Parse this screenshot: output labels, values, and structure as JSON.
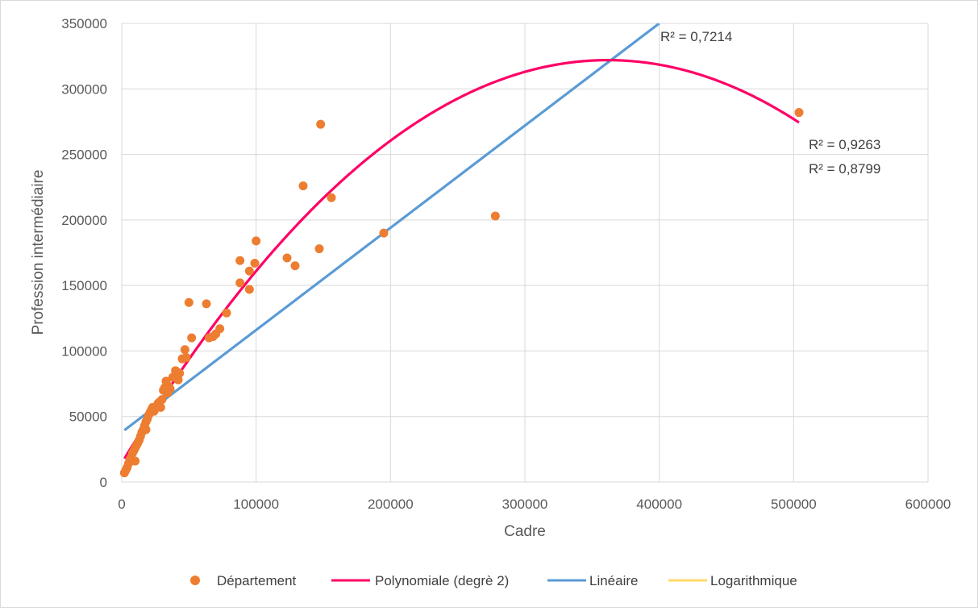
{
  "chart_data": {
    "type": "scatter",
    "xlabel": "Cadre",
    "ylabel": "Profession intermédiaire",
    "xlim": [
      0,
      600000
    ],
    "ylim": [
      0,
      350000
    ],
    "x_ticks": [
      "0",
      "100000",
      "200000",
      "300000",
      "400000",
      "500000",
      "600000"
    ],
    "y_ticks": [
      "0",
      "50000",
      "100000",
      "150000",
      "200000",
      "250000",
      "300000",
      "350000"
    ],
    "grid": true,
    "legend_position": "bottom",
    "series": [
      {
        "name": "Département",
        "color": "#ED7D31",
        "points": [
          [
            2000,
            7000
          ],
          [
            3000,
            9000
          ],
          [
            4000,
            11000
          ],
          [
            5000,
            14000
          ],
          [
            6000,
            17000
          ],
          [
            7000,
            19000
          ],
          [
            8000,
            22000
          ],
          [
            9000,
            24000
          ],
          [
            10000,
            26000
          ],
          [
            11000,
            28000
          ],
          [
            12000,
            30000
          ],
          [
            13000,
            32000
          ],
          [
            14000,
            35000
          ],
          [
            15000,
            38000
          ],
          [
            16000,
            40000
          ],
          [
            17000,
            43000
          ],
          [
            18000,
            46000
          ],
          [
            19000,
            48000
          ],
          [
            20000,
            51000
          ],
          [
            21000,
            53000
          ],
          [
            22000,
            55000
          ],
          [
            23000,
            57000
          ],
          [
            24000,
            54000
          ],
          [
            25000,
            56000
          ],
          [
            26000,
            58000
          ],
          [
            27000,
            60000
          ],
          [
            28000,
            61000
          ],
          [
            29000,
            57000
          ],
          [
            30000,
            63000
          ],
          [
            31000,
            70000
          ],
          [
            32000,
            72000
          ],
          [
            33000,
            77000
          ],
          [
            34000,
            68000
          ],
          [
            35000,
            73000
          ],
          [
            36000,
            71000
          ],
          [
            38000,
            80000
          ],
          [
            40000,
            85000
          ],
          [
            41000,
            84000
          ],
          [
            42000,
            78000
          ],
          [
            43000,
            83000
          ],
          [
            45000,
            94000
          ],
          [
            47000,
            101000
          ],
          [
            48000,
            95000
          ],
          [
            10000,
            16000
          ],
          [
            18000,
            40000
          ],
          [
            50000,
            137000
          ],
          [
            52000,
            110000
          ],
          [
            63000,
            136000
          ],
          [
            65000,
            110000
          ],
          [
            68000,
            111000
          ],
          [
            70000,
            113000
          ],
          [
            73000,
            117000
          ],
          [
            78000,
            129000
          ],
          [
            88000,
            169000
          ],
          [
            88000,
            152000
          ],
          [
            95000,
            147000
          ],
          [
            95000,
            161000
          ],
          [
            99000,
            167000
          ],
          [
            100000,
            184000
          ],
          [
            123000,
            171000
          ],
          [
            129000,
            165000
          ],
          [
            135000,
            226000
          ],
          [
            147000,
            178000
          ],
          [
            148000,
            273000
          ],
          [
            156000,
            217000
          ],
          [
            195000,
            190000
          ],
          [
            278000,
            203000
          ],
          [
            504000,
            282000
          ]
        ]
      },
      {
        "name": "Polynomiale (degrè 2)",
        "color": "#FF0066",
        "coef": [
          14500,
          1.7,
          -2.35e-06
        ],
        "x_range": [
          2000,
          504000
        ],
        "r2_label": "R² = 0,9263"
      },
      {
        "name": "Linéaire",
        "color": "#5B9BD5",
        "coef": [
          38000,
          0.78
        ],
        "x_range": [
          2000,
          400000
        ],
        "r2_label": "R² = 0,7214"
      },
      {
        "name": "Logarithmique",
        "color": "#FFD966",
        "coef": [
          -231000,
          75500
        ],
        "x_range": [
          6500,
          504000
        ],
        "r2_label": "R² = 0,8799"
      }
    ]
  }
}
